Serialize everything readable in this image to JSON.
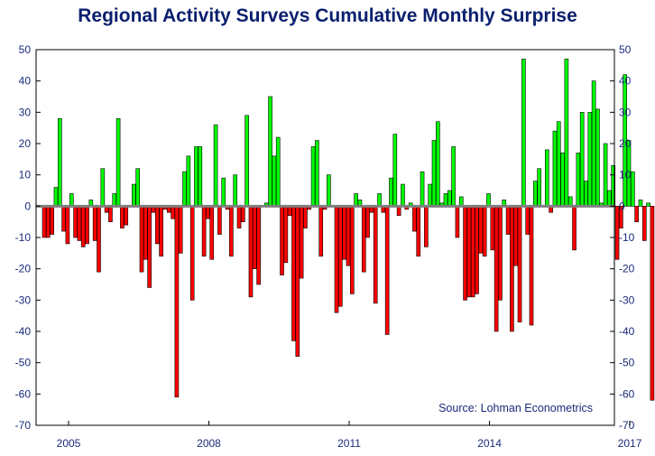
{
  "chart_data": {
    "type": "bar",
    "title": "Regional Activity Surveys Cumulative Monthly Surprise",
    "source": "Source: Lohman Econometrics",
    "xlabel": "",
    "ylabel": "",
    "ylim": [
      -70,
      50
    ],
    "y_ticks": [
      50,
      40,
      30,
      20,
      10,
      0,
      -10,
      -20,
      -30,
      -40,
      -50,
      -60,
      -70
    ],
    "x_tick_labels": [
      "2005",
      "2008",
      "2011",
      "2014",
      "2017"
    ],
    "x_tick_years": [
      2005,
      2008,
      2011,
      2014,
      2017
    ],
    "start_year": 2005,
    "start_month": 1,
    "grid": false,
    "colors": {
      "positive": "#00ff00",
      "negative": "#ff0000",
      "zero_line": "#808080",
      "axis": "#000000",
      "title": "#0a1f6e"
    },
    "series": [
      {
        "values": [
          -10,
          -10,
          -9,
          6,
          28,
          -8,
          -12,
          4,
          -10,
          -11,
          -13,
          -12,
          2,
          -11,
          -21,
          12,
          -2,
          -5,
          4,
          28,
          -7,
          -6,
          0,
          7,
          12,
          -21,
          -17,
          -26,
          -2,
          -12,
          -16,
          -1,
          -2,
          -4,
          -61,
          -15,
          11,
          16,
          -30,
          19,
          19,
          -16,
          -4,
          -17,
          26,
          -9,
          9,
          -1,
          -16,
          10,
          -7,
          -5,
          29,
          -29,
          -20,
          -25,
          0,
          1,
          35,
          16,
          22,
          -22,
          -18,
          -3,
          -43,
          -48,
          -23,
          -7,
          -1,
          19,
          21,
          -16,
          -1,
          10,
          0,
          -34,
          -32,
          -17,
          -19,
          -28,
          4,
          2,
          -21,
          -10,
          -2,
          -31,
          4,
          -2,
          -41,
          9,
          23,
          -3,
          7,
          -1,
          1,
          -8,
          -16,
          11,
          -13,
          7,
          21,
          27,
          1,
          4,
          5,
          19,
          -10,
          3,
          -30,
          -29,
          -29,
          -28,
          -15,
          -16,
          4,
          -14,
          -40,
          -30,
          2,
          -9,
          -40,
          -19,
          -37,
          47,
          -9,
          -38,
          8,
          12,
          0,
          18,
          -2,
          24,
          27,
          17,
          47,
          3,
          -14,
          17,
          30,
          8,
          30,
          40,
          31,
          1,
          20,
          5,
          13,
          -17,
          -7,
          42,
          21,
          11,
          -5,
          2,
          -11,
          1,
          -62
        ]
      }
    ]
  }
}
